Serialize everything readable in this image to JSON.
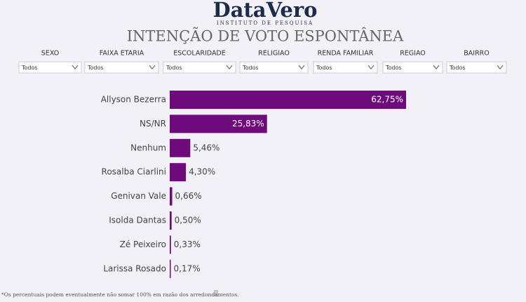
{
  "header": {
    "logo": "DataVero",
    "logo_subtitle": "INSTITUTO DE PESQUISA"
  },
  "filters": [
    {
      "label": "SEXO",
      "value": "Todos"
    },
    {
      "label": "FAIXA ETARIA",
      "value": "Todos"
    },
    {
      "label": "ESCOLARIDADE",
      "value": "Todos"
    },
    {
      "label": "RELIGIAO",
      "value": "Todos"
    },
    {
      "label": "RENDA FAMILIAR",
      "value": "Todos"
    },
    {
      "label": "REGIAO",
      "value": "Todos"
    },
    {
      "label": "BAIRRO",
      "value": "Todos"
    }
  ],
  "chart_data": {
    "type": "hbar",
    "title": "INTENÇÃO DE VOTO ESPONTÂNEA",
    "categories": [
      "Allyson Bezerra",
      "NS/NR",
      "Nenhum",
      "Rosalba Ciarlini",
      "Genivan Vale",
      "Isolda Dantas",
      "Zé Peixeiro",
      "Larissa Rosado"
    ],
    "values": [
      62.75,
      25.83,
      5.46,
      4.3,
      0.66,
      0.5,
      0.33,
      0.17
    ],
    "value_labels": [
      "62,75%",
      "25,83%",
      "5,46%",
      "4,30%",
      "0,66%",
      "0,50%",
      "0,33%",
      "0,17%"
    ],
    "color": "#6e0a7c"
  },
  "footnote": "*Os percentuais podem eventualmente não somar 100% em razão dos arredondamentos."
}
